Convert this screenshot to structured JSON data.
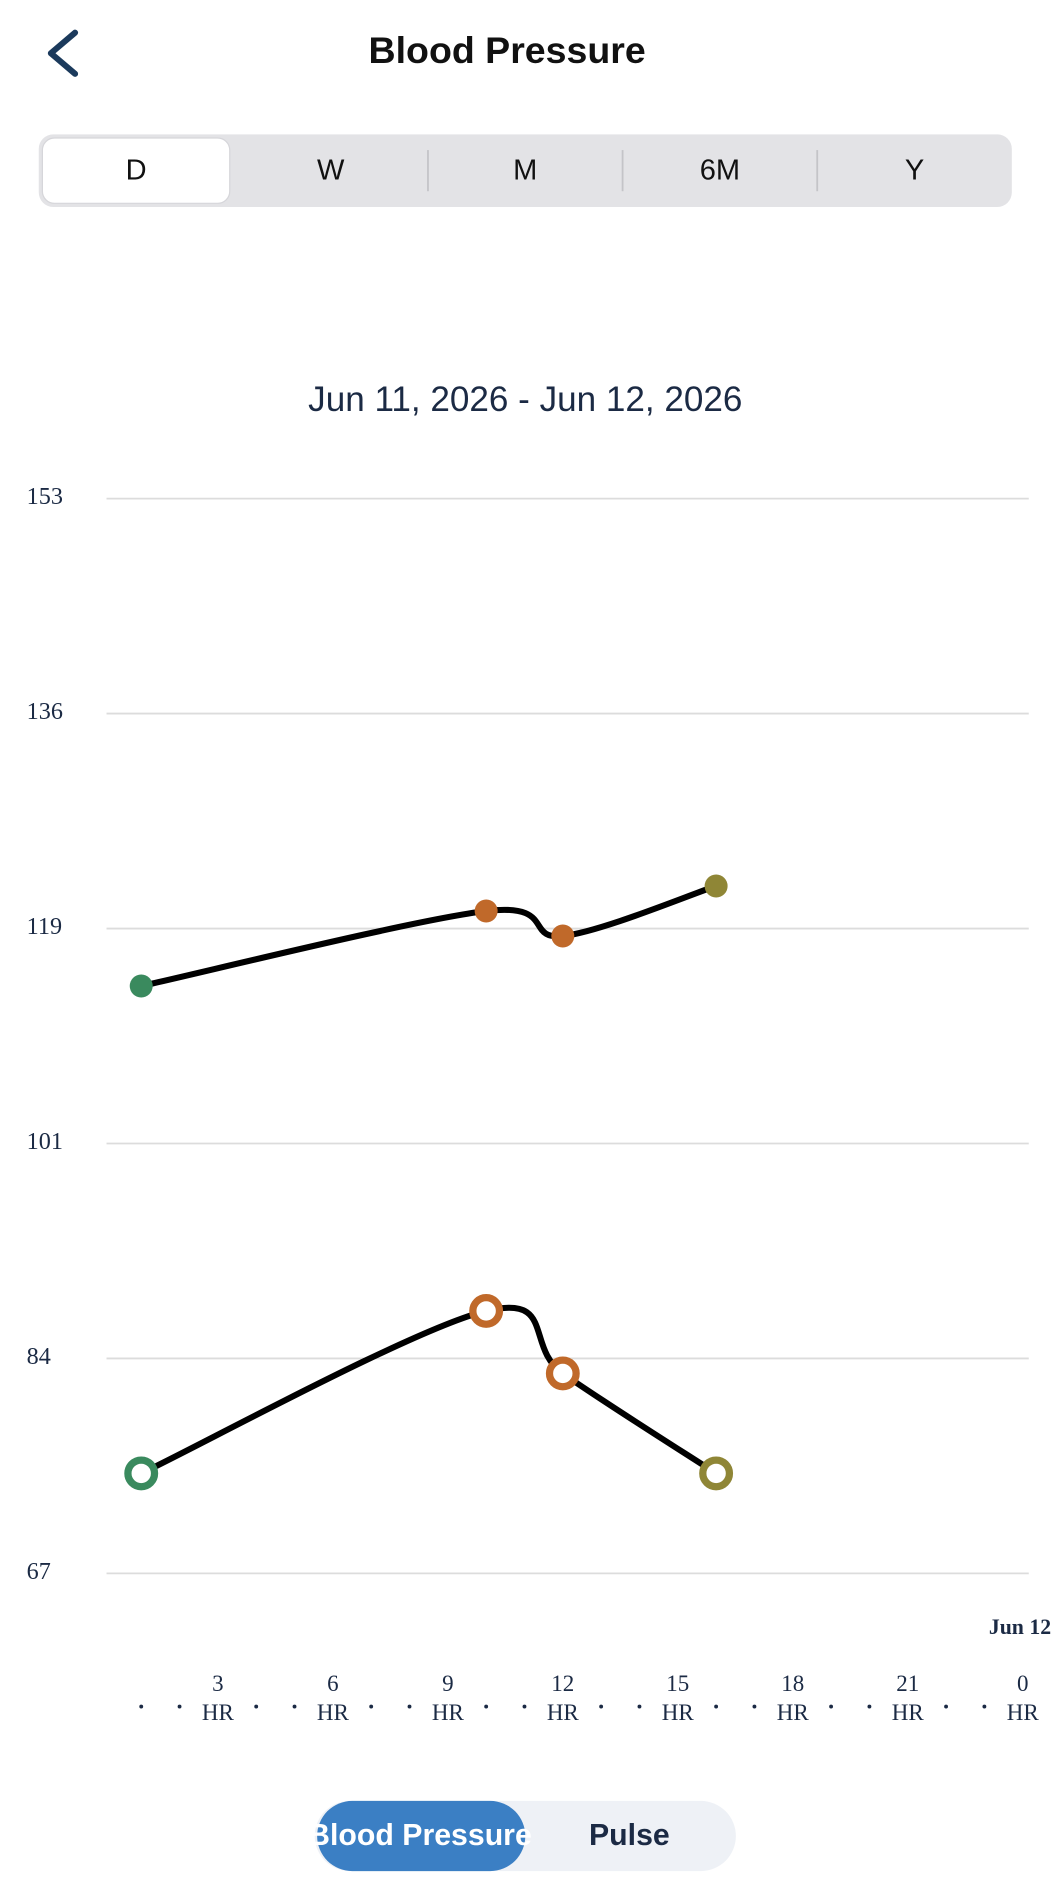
{
  "header": {
    "title": "Blood Pressure"
  },
  "tabs": {
    "options": [
      "D",
      "W",
      "M",
      "6M",
      "Y"
    ],
    "selected": 0
  },
  "chart_data": {
    "type": "line",
    "subtitle": "Jun 11, 2026 - Jun 12, 2026",
    "annotation": "Jun 12",
    "x": [
      1,
      10,
      12,
      16
    ],
    "xlim": [
      0,
      24
    ],
    "xticks": [
      {
        "value": 3,
        "label": "3 HR"
      },
      {
        "value": 6,
        "label": "6 HR"
      },
      {
        "value": 9,
        "label": "9 HR"
      },
      {
        "value": 12,
        "label": "12 HR"
      },
      {
        "value": 15,
        "label": "15 HR"
      },
      {
        "value": 18,
        "label": "18 HR"
      },
      {
        "value": 21,
        "label": "21 HR"
      },
      {
        "value": 24,
        "label": "0 HR"
      }
    ],
    "ylim": [
      67,
      153
    ],
    "yticks": [
      67,
      {
        "value": 84.2,
        "label": "84"
      },
      {
        "value": 101.4,
        "label": "101"
      },
      {
        "value": 118.6,
        "label": "119"
      },
      {
        "value": 135.8,
        "label": "136"
      },
      153
    ],
    "grid": true,
    "series": [
      {
        "color": "#000000",
        "marker": "filled",
        "values": [
          114,
          120,
          118,
          122
        ],
        "point_colors": [
          "#3a8a5e",
          "#c0692a",
          "#c0692a",
          "#8f8636"
        ]
      },
      {
        "color": "#000000",
        "marker": "ring",
        "values": [
          75,
          88,
          83,
          75
        ],
        "point_colors": [
          "#3a8a5e",
          "#c0692a",
          "#c0692a",
          "#8f8636"
        ]
      }
    ]
  },
  "toggle": {
    "options": [
      "Blood Pressure",
      "Pulse"
    ],
    "selected": 0
  }
}
